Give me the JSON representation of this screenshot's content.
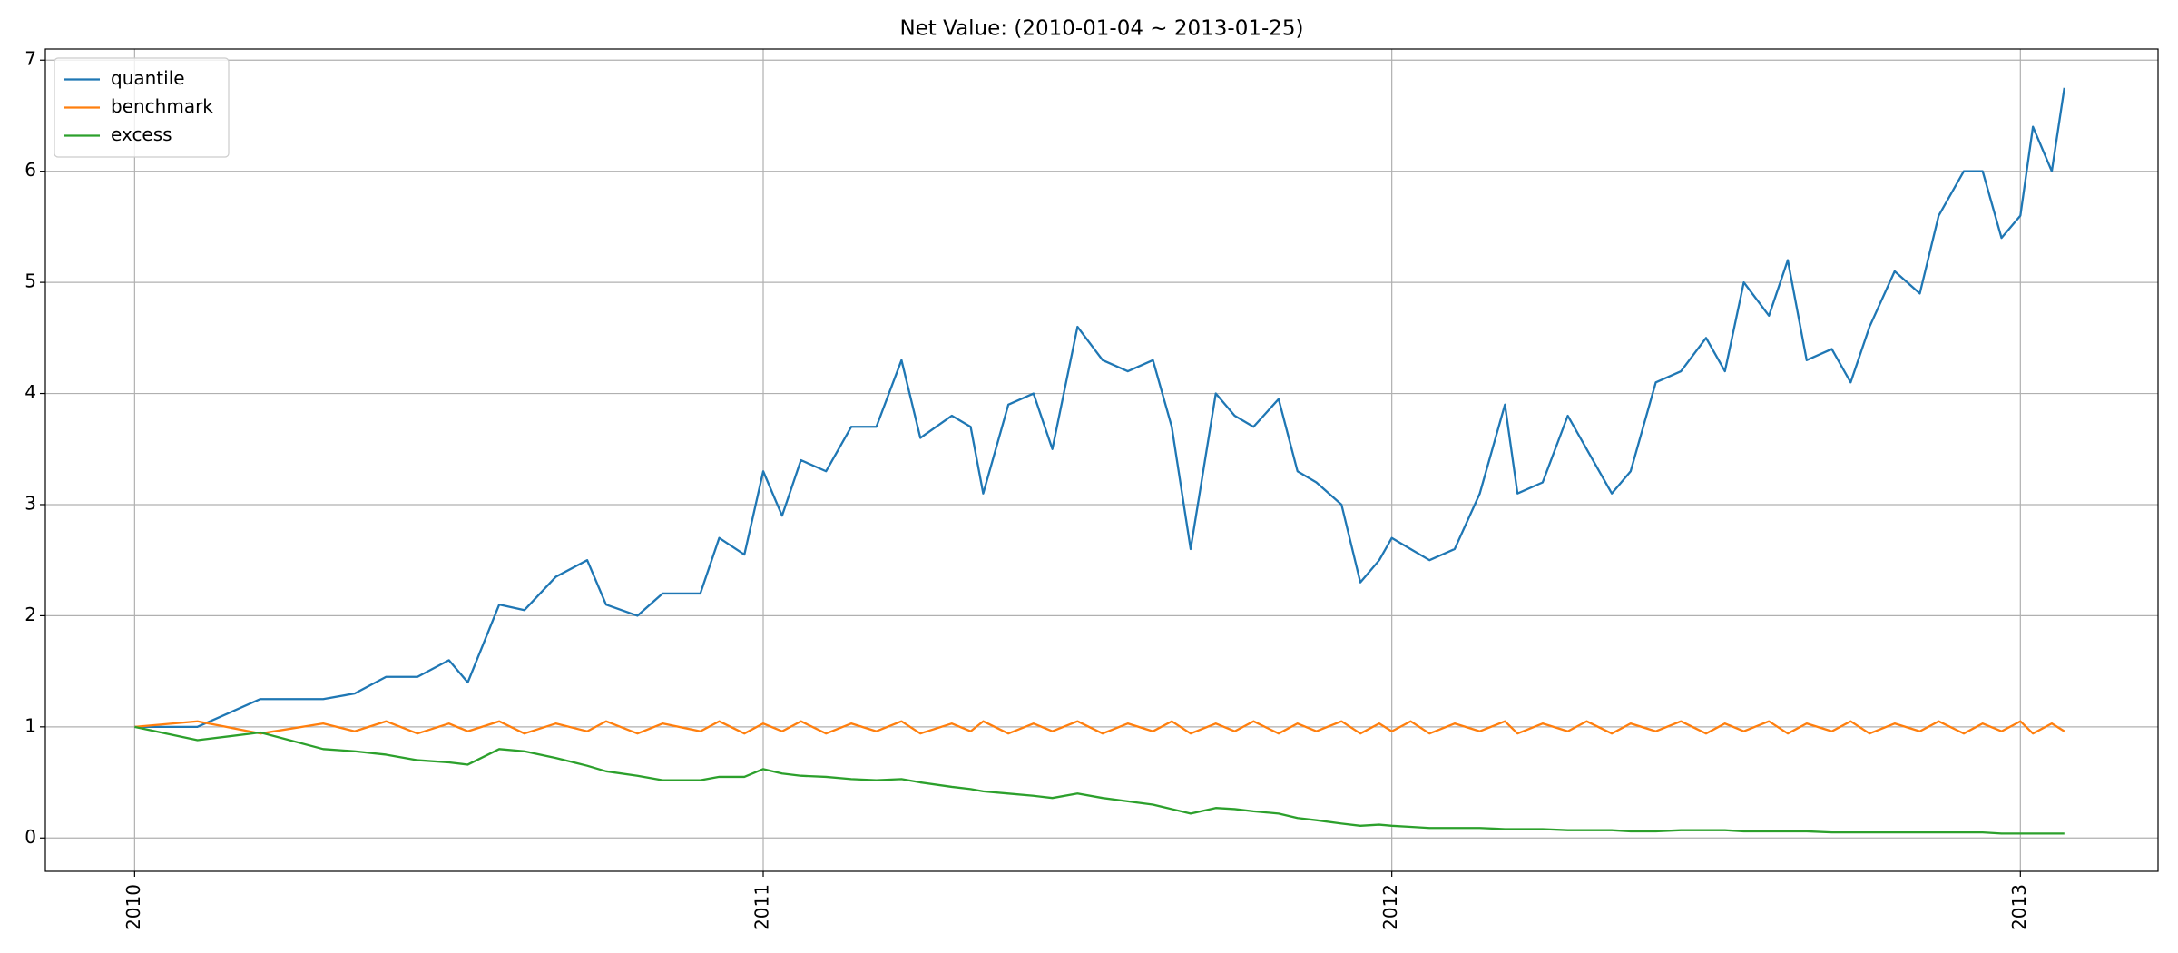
{
  "chart_data": {
    "type": "line",
    "title": "Net Value: (2010-01-04 ~ 2013-01-25)",
    "x": [
      2010,
      2010.1,
      2010.2,
      2010.3,
      2010.35,
      2010.4,
      2010.45,
      2010.5,
      2010.53,
      2010.58,
      2010.62,
      2010.67,
      2010.72,
      2010.75,
      2010.8,
      2010.84,
      2010.9,
      2010.93,
      2010.97,
      2011,
      2011.03,
      2011.06,
      2011.1,
      2011.14,
      2011.18,
      2011.22,
      2011.25,
      2011.3,
      2011.33,
      2011.35,
      2011.39,
      2011.43,
      2011.46,
      2011.5,
      2011.54,
      2011.58,
      2011.62,
      2011.65,
      2011.68,
      2011.72,
      2011.75,
      2011.78,
      2011.82,
      2011.85,
      2011.88,
      2011.92,
      2011.95,
      2011.98,
      2012,
      2012.03,
      2012.06,
      2012.1,
      2012.14,
      2012.18,
      2012.2,
      2012.24,
      2012.28,
      2012.31,
      2012.35,
      2012.38,
      2012.42,
      2012.46,
      2012.5,
      2012.53,
      2012.56,
      2012.6,
      2012.63,
      2012.66,
      2012.7,
      2012.73,
      2012.76,
      2012.8,
      2012.84,
      2012.87,
      2012.91,
      2012.94,
      2012.97,
      2013,
      2013.02,
      2013.05,
      2013.07
    ],
    "series": [
      {
        "name": "quantile",
        "color": "#1f77b4",
        "values": [
          1.0,
          1.0,
          1.25,
          1.25,
          1.3,
          1.45,
          1.45,
          1.6,
          1.4,
          2.1,
          2.05,
          2.35,
          2.5,
          2.1,
          2.0,
          2.2,
          2.2,
          2.7,
          2.55,
          3.3,
          2.9,
          3.4,
          3.3,
          3.7,
          3.7,
          4.3,
          3.6,
          3.8,
          3.7,
          3.1,
          3.9,
          4.0,
          3.5,
          4.6,
          4.3,
          4.2,
          4.3,
          3.7,
          2.6,
          4.0,
          3.8,
          3.7,
          3.95,
          3.3,
          3.2,
          3.0,
          2.3,
          2.5,
          2.7,
          2.6,
          2.5,
          2.6,
          3.1,
          3.9,
          3.1,
          3.2,
          3.8,
          3.5,
          3.1,
          3.3,
          4.1,
          4.2,
          4.5,
          4.2,
          5.0,
          4.7,
          5.2,
          4.3,
          4.4,
          4.1,
          4.6,
          5.1,
          4.9,
          5.6,
          6.0,
          6.0,
          5.4,
          5.6,
          6.4,
          6.0,
          6.75
        ]
      },
      {
        "name": "benchmark",
        "color": "#ff7f0e",
        "values": [
          1.0,
          1.05,
          0.94,
          1.03,
          0.96,
          1.05,
          0.94,
          1.03,
          0.96,
          1.05,
          0.94,
          1.03,
          0.96,
          1.05,
          0.94,
          1.03,
          0.96,
          1.05,
          0.94,
          1.03,
          0.96,
          1.05,
          0.94,
          1.03,
          0.96,
          1.05,
          0.94,
          1.03,
          0.96,
          1.05,
          0.94,
          1.03,
          0.96,
          1.05,
          0.94,
          1.03,
          0.96,
          1.05,
          0.94,
          1.03,
          0.96,
          1.05,
          0.94,
          1.03,
          0.96,
          1.05,
          0.94,
          1.03,
          0.96,
          1.05,
          0.94,
          1.03,
          0.96,
          1.05,
          0.94,
          1.03,
          0.96,
          1.05,
          0.94,
          1.03,
          0.96,
          1.05,
          0.94,
          1.03,
          0.96,
          1.05,
          0.94,
          1.03,
          0.96,
          1.05,
          0.94,
          1.03,
          0.96,
          1.05,
          0.94,
          1.03,
          0.96,
          1.05,
          0.94,
          1.03,
          0.96
        ]
      },
      {
        "name": "excess",
        "color": "#2ca02c",
        "values": [
          1.0,
          0.88,
          0.95,
          0.8,
          0.78,
          0.75,
          0.7,
          0.68,
          0.66,
          0.8,
          0.78,
          0.72,
          0.65,
          0.6,
          0.56,
          0.52,
          0.52,
          0.55,
          0.55,
          0.62,
          0.58,
          0.56,
          0.55,
          0.53,
          0.52,
          0.53,
          0.5,
          0.46,
          0.44,
          0.42,
          0.4,
          0.38,
          0.36,
          0.4,
          0.36,
          0.33,
          0.3,
          0.26,
          0.22,
          0.27,
          0.26,
          0.24,
          0.22,
          0.18,
          0.16,
          0.13,
          0.11,
          0.12,
          0.11,
          0.1,
          0.09,
          0.09,
          0.09,
          0.08,
          0.08,
          0.08,
          0.07,
          0.07,
          0.07,
          0.06,
          0.06,
          0.07,
          0.07,
          0.07,
          0.06,
          0.06,
          0.06,
          0.06,
          0.05,
          0.05,
          0.05,
          0.05,
          0.05,
          0.05,
          0.05,
          0.05,
          0.04,
          0.04,
          0.04,
          0.04,
          0.04
        ]
      }
    ],
    "xlim": [
      2009.858,
      2013.219
    ],
    "xticks": [
      2010,
      2011,
      2012,
      2013
    ],
    "ylim": [
      -0.3,
      7.1
    ],
    "yticks": [
      0,
      1,
      2,
      3,
      4,
      5,
      6,
      7
    ],
    "grid": true,
    "legend": "upper left"
  }
}
